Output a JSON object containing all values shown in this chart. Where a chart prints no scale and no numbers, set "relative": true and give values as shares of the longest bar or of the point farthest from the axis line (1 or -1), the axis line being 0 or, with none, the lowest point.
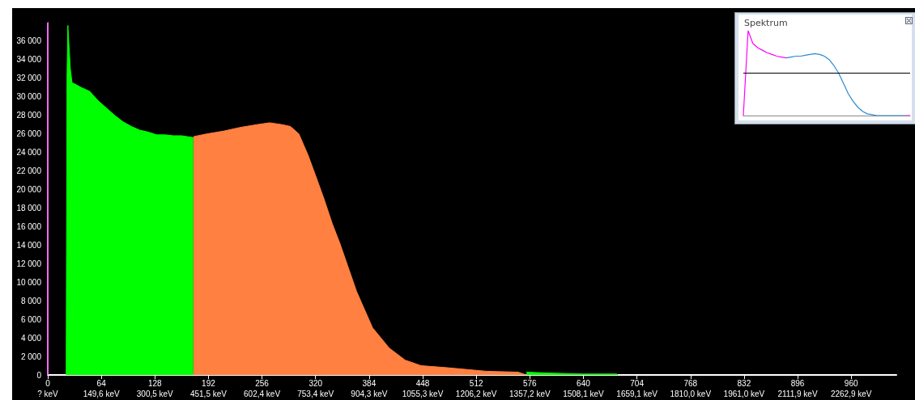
{
  "chart_data": [
    {
      "type": "area",
      "xlim": [
        0,
        1014
      ],
      "ylim": [
        0,
        38000
      ],
      "xticks": [
        0,
        64,
        128,
        192,
        256,
        320,
        384,
        448,
        512,
        576,
        640,
        704,
        768,
        832,
        896,
        960
      ],
      "x2lim": [
        -1.35,
        2390.2
      ],
      "x2ticks": [
        {
          "value": -1.35,
          "label": "? keV"
        },
        {
          "value": 149.6,
          "label": "149,6 keV"
        },
        {
          "value": 300.5,
          "label": "300,5 keV"
        },
        {
          "value": 451.5,
          "label": "451,5 keV"
        },
        {
          "value": 602.4,
          "label": "602,4 keV"
        },
        {
          "value": 753.4,
          "label": "753,4 keV"
        },
        {
          "value": 904.3,
          "label": "904,3 keV"
        },
        {
          "value": 1055.3,
          "label": "1055,3 keV"
        },
        {
          "value": 1206.2,
          "label": "1206,2 keV"
        },
        {
          "value": 1357.2,
          "label": "1357,2 keV"
        },
        {
          "value": 1508.1,
          "label": "1508,1 keV"
        },
        {
          "value": 1659.1,
          "label": "1659,1 keV"
        },
        {
          "value": 1810.0,
          "label": "1810,0 keV"
        },
        {
          "value": 1961.0,
          "label": "1961,0 keV"
        },
        {
          "value": 2111.9,
          "label": "2111,9 keV"
        },
        {
          "value": 2262.9,
          "label": "2262,9 keV"
        }
      ],
      "yticks": [
        0,
        {
          "value": 2000,
          "label": "2 000"
        },
        {
          "value": 4000,
          "label": "4 000"
        },
        {
          "value": 6000,
          "label": "6 000"
        },
        {
          "value": 8000,
          "label": "8 000"
        },
        {
          "value": 10000,
          "label": "10 000"
        },
        {
          "value": 12000,
          "label": "12 000"
        },
        {
          "value": 14000,
          "label": "14 000"
        },
        {
          "value": 16000,
          "label": "16 000"
        },
        {
          "value": 18000,
          "label": "18 000"
        },
        {
          "value": 20000,
          "label": "20 000"
        },
        {
          "value": 22000,
          "label": "22 000"
        },
        {
          "value": 24000,
          "label": "24 000"
        },
        {
          "value": 26000,
          "label": "26 000"
        },
        {
          "value": 28000,
          "label": "28 000"
        },
        {
          "value": 30000,
          "label": "30 000"
        },
        {
          "value": 32000,
          "label": "32 000"
        },
        {
          "value": 34000,
          "label": "34 000"
        },
        {
          "value": 36000,
          "label": "36 000"
        }
      ],
      "grid": false,
      "ref_lines": [
        {
          "axis": "x",
          "value": 0,
          "color": "#ff66ff"
        }
      ],
      "series": [
        {
          "color": "#00ff00",
          "x": [
            22,
            22.5,
            23,
            24,
            25,
            27,
            29,
            32,
            40,
            50,
            60,
            70,
            80,
            90,
            100,
            110,
            120,
            130,
            140,
            150,
            160,
            174,
            175,
            572,
            600,
            640,
            680,
            681
          ],
          "values": [
            0,
            16000,
            32000,
            37700,
            36000,
            33000,
            31500,
            31400,
            31000,
            30600,
            29600,
            28800,
            28000,
            27300,
            26800,
            26400,
            26200,
            25900,
            25900,
            25800,
            25800,
            25600,
            null,
            300,
            200,
            100,
            100,
            0
          ]
        },
        {
          "color": "#ff8040",
          "x": [
            174,
            190,
            210,
            230,
            250,
            265,
            280,
            290,
            300,
            311,
            320,
            330,
            340,
            349,
            369,
            388,
            408,
            427,
            446,
            475,
            524,
            562,
            572
          ],
          "values": [
            25700,
            26000,
            26300,
            26700,
            27000,
            27200,
            27000,
            26800,
            26000,
            23700,
            21500,
            19000,
            16300,
            14200,
            9000,
            5100,
            2900,
            1600,
            1000,
            800,
            400,
            300,
            0
          ]
        }
      ]
    },
    {
      "type": "line",
      "title": "Spektrum",
      "relative": true,
      "categories": [
        null,
        null,
        null,
        null,
        null,
        null,
        null,
        null,
        null,
        null,
        null,
        null,
        null,
        null,
        null,
        null,
        null,
        null,
        null,
        null,
        null,
        null,
        null,
        null,
        null,
        null,
        null,
        null,
        null,
        null,
        null,
        null,
        null,
        null,
        null,
        null
      ],
      "ref_lines": [
        {
          "axis": "y",
          "value": 0.5,
          "color": "#000000"
        }
      ],
      "series": [
        {
          "color": "#ff00ff",
          "values": [
            0,
            1,
            0.85,
            0.8,
            0.77,
            0.74,
            0.72,
            0.7,
            0.69,
            0.68,
            null,
            null,
            null,
            null,
            null,
            null,
            null,
            null,
            null,
            null,
            null,
            null,
            null,
            null,
            null,
            null,
            null,
            null,
            null,
            null,
            null,
            null,
            null,
            null,
            0,
            0
          ]
        },
        {
          "color": "#2a8ad0",
          "values": [
            null,
            null,
            null,
            null,
            null,
            null,
            null,
            null,
            null,
            0.68,
            0.69,
            0.7,
            0.7,
            0.71,
            0.72,
            0.73,
            0.72,
            0.7,
            0.66,
            0.59,
            0.5,
            0.38,
            0.26,
            0.17,
            0.1,
            0.05,
            0.02,
            0.01,
            0,
            0,
            0,
            0,
            0,
            0,
            0,
            null
          ]
        }
      ]
    }
  ]
}
